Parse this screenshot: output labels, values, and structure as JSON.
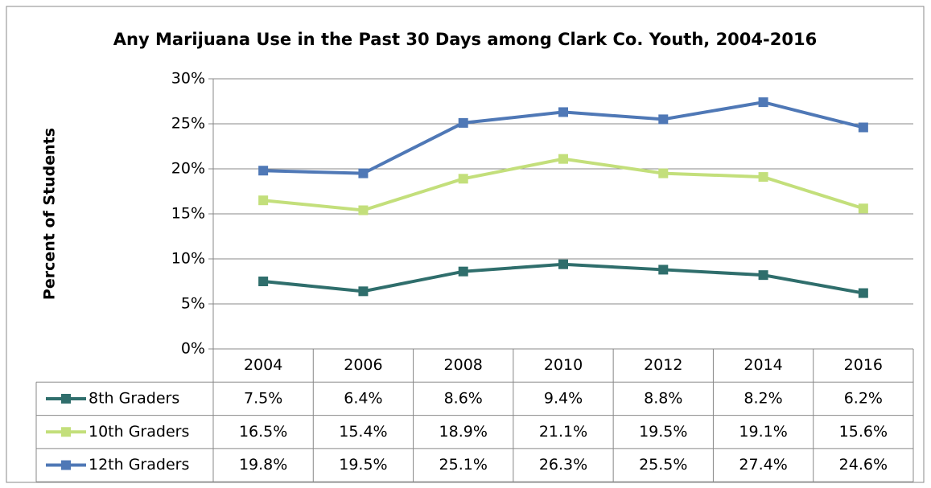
{
  "chart_data": {
    "type": "line",
    "title": "Any Marijuana Use in the Past 30 Days among Clark Co. Youth, 2004-2016",
    "y_label": "Percent of Students",
    "categories": [
      "2004",
      "2006",
      "2008",
      "2010",
      "2012",
      "2014",
      "2016"
    ],
    "series": [
      {
        "name": "8th Graders",
        "color": "#2f6e6c",
        "values": [
          7.5,
          6.4,
          8.6,
          9.4,
          8.8,
          8.2,
          6.2
        ],
        "value_labels": [
          "7.5%",
          "6.4%",
          "8.6%",
          "9.4%",
          "8.8%",
          "8.2%",
          "6.2%"
        ]
      },
      {
        "name": "10th Graders",
        "color": "#c3df7b",
        "values": [
          16.5,
          15.4,
          18.9,
          21.1,
          19.5,
          19.1,
          15.6
        ],
        "value_labels": [
          "16.5%",
          "15.4%",
          "18.9%",
          "21.1%",
          "19.5%",
          "19.1%",
          "15.6%"
        ]
      },
      {
        "name": "12th Graders",
        "color": "#4f78b6",
        "values": [
          19.8,
          19.5,
          25.1,
          26.3,
          25.5,
          27.4,
          24.6
        ],
        "value_labels": [
          "19.8%",
          "19.5%",
          "25.1%",
          "26.3%",
          "25.5%",
          "27.4%",
          "24.6%"
        ]
      }
    ],
    "ylim": [
      0,
      30
    ],
    "yticks": [
      {
        "value": 0,
        "label": "0%"
      },
      {
        "value": 5,
        "label": "5%"
      },
      {
        "value": 10,
        "label": "10%"
      },
      {
        "value": 15,
        "label": "15%"
      },
      {
        "value": 20,
        "label": "20%"
      },
      {
        "value": 25,
        "label": "25%"
      },
      {
        "value": 30,
        "label": "30%"
      }
    ],
    "grid": true
  }
}
